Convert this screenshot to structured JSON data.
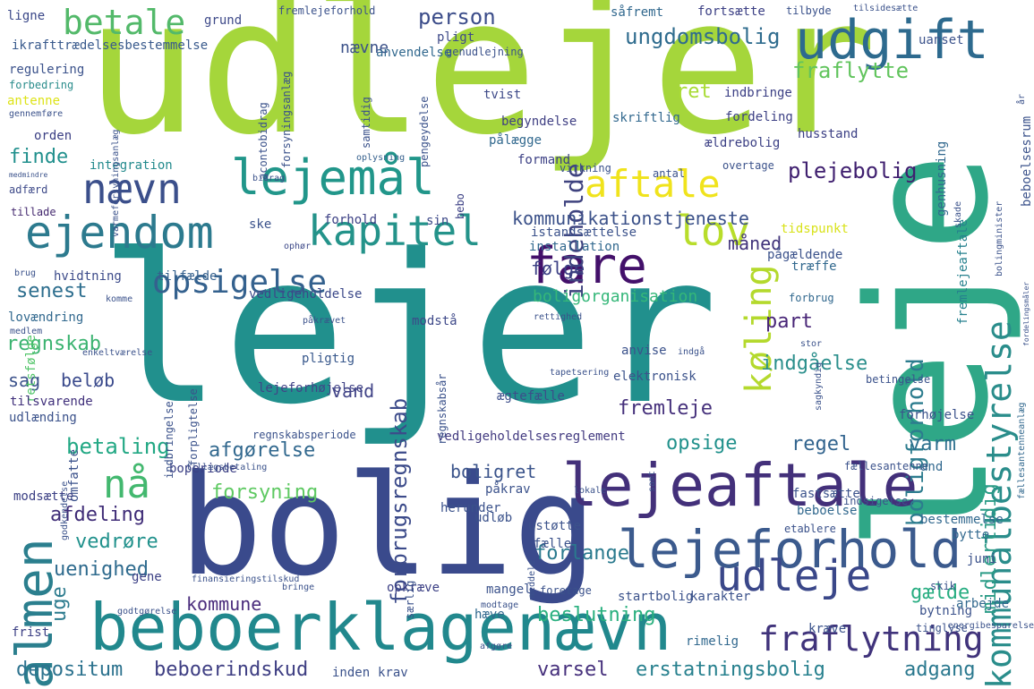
{
  "title": "Word cloud",
  "palette": {
    "lime": "#a7d83a",
    "yellow": "#f2e21f",
    "green": "#5ec962",
    "teal": "#22a884",
    "cyan": "#2a9d8f",
    "blue": "#31688e",
    "indigo": "#3b528b",
    "purple": "#482475",
    "violet": "#440154"
  },
  "words": [
    {
      "text": "udlejer",
      "color": "#a5d63b"
    },
    {
      "text": "lejer",
      "color": "#21908d"
    },
    {
      "text": "leje",
      "color": "#2fa787"
    },
    {
      "text": "bolig",
      "color": "#3a4a8c"
    },
    {
      "text": "beboerklagenævn",
      "color": "#21888d"
    },
    {
      "text": "lejeaftale",
      "color": "#43307a"
    },
    {
      "text": "lejeforhold",
      "color": "#3b5a8d"
    },
    {
      "text": "almen",
      "color": "#2b7f8e"
    },
    {
      "text": "udgift",
      "color": "#2d6a8e"
    },
    {
      "text": "fare",
      "color": "#43106a"
    },
    {
      "text": "lejemål",
      "color": "#21968a"
    },
    {
      "text": "ejendom",
      "color": "#2c7a8e"
    },
    {
      "text": "nævn",
      "color": "#3b4f8b"
    },
    {
      "text": "kapitel",
      "color": "#24938a"
    },
    {
      "text": "lov",
      "color": "#b8dd2b"
    },
    {
      "text": "aftale",
      "color": "#f0e31c"
    },
    {
      "text": "udleje",
      "color": "#3a4789"
    },
    {
      "text": "kommunalbestyrelse",
      "color": "#2a8d8b"
    },
    {
      "text": "køling",
      "color": "#b4d92d"
    },
    {
      "text": "opsigelse",
      "color": "#34618e"
    },
    {
      "text": "betale",
      "color": "#53b96a"
    },
    {
      "text": "fraflytning",
      "color": "#40337b"
    },
    {
      "text": "forbrugsregnskab",
      "color": "#3c4b8a"
    },
    {
      "text": "boligforhold",
      "color": "#2c7c8e"
    },
    {
      "text": "plejebolig",
      "color": "#3f1f6f"
    },
    {
      "text": "fraflytte",
      "color": "#61c45d"
    },
    {
      "text": "ungdomsbolig",
      "color": "#2f6c8e"
    },
    {
      "text": "indeholde",
      "color": "#3f437f"
    },
    {
      "text": "kommunikationstjeneste",
      "color": "#3b5189"
    },
    {
      "text": "person",
      "color": "#3c4d8a"
    },
    {
      "text": "nævne",
      "color": "#3b5189"
    },
    {
      "text": "ret",
      "color": "#a8db34"
    },
    {
      "text": "følge",
      "color": "#3b3f84"
    },
    {
      "text": "måned",
      "color": "#40327a"
    },
    {
      "text": "senest",
      "color": "#2d6e8e"
    },
    {
      "text": "finde",
      "color": "#21908d"
    },
    {
      "text": "regnskab",
      "color": "#3bb370"
    },
    {
      "text": "sag",
      "color": "#3b528b"
    },
    {
      "text": "beløb",
      "color": "#3a4a8c"
    },
    {
      "text": "vand",
      "color": "#414487"
    },
    {
      "text": "betaling",
      "color": "#22a884"
    },
    {
      "text": "afgørelse",
      "color": "#31688e"
    },
    {
      "text": "nå",
      "color": "#43b86f"
    },
    {
      "text": "forsyning",
      "color": "#5ec962"
    },
    {
      "text": "afdeling",
      "color": "#3f2c77"
    },
    {
      "text": "uge",
      "color": "#2c7b8e"
    },
    {
      "text": "vedrøre",
      "color": "#21918c"
    },
    {
      "text": "uenighed",
      "color": "#2f6b8e"
    },
    {
      "text": "kommune",
      "color": "#4a2c7c"
    },
    {
      "text": "depositum",
      "color": "#2c728e"
    },
    {
      "text": "beboerindskud",
      "color": "#3f3f83"
    },
    {
      "text": "varsel",
      "color": "#46307c"
    },
    {
      "text": "erstatningsbolig",
      "color": "#27808e"
    },
    {
      "text": "adgang",
      "color": "#2a788e"
    },
    {
      "text": "fremleje",
      "color": "#45307b"
    },
    {
      "text": "indgåelse",
      "color": "#2b8f8c"
    },
    {
      "text": "opsige",
      "color": "#21918c"
    },
    {
      "text": "regel",
      "color": "#32648e"
    },
    {
      "text": "varm",
      "color": "#2c708e"
    },
    {
      "text": "part",
      "color": "#482577"
    },
    {
      "text": "boligret",
      "color": "#3b548b"
    },
    {
      "text": "forlange",
      "color": "#2a7a8e"
    },
    {
      "text": "beslutning",
      "color": "#2ab07f"
    },
    {
      "text": "gælde",
      "color": "#27ad81"
    },
    {
      "text": "midlertidig",
      "color": "#2a9b86"
    },
    {
      "text": "boligorganisation",
      "color": "#35b779"
    },
    {
      "text": "vedligeholdelse",
      "color": "#3b4889"
    },
    {
      "text": "vedligeholdelsesreglement",
      "color": "#423a80"
    },
    {
      "text": "lejeforhøjelse",
      "color": "#414487"
    },
    {
      "text": "elektronisk",
      "color": "#3b528b"
    },
    {
      "text": "ægtefælle",
      "color": "#3c4e8a"
    },
    {
      "text": "anvise",
      "color": "#3b528b"
    },
    {
      "text": "pligtig",
      "color": "#38588c"
    },
    {
      "text": "modstå",
      "color": "#3e4989"
    },
    {
      "text": "retsfølge",
      "color": "#52c569"
    },
    {
      "text": "lovændring",
      "color": "#31688e"
    },
    {
      "text": "tilsvarende",
      "color": "#40307b"
    },
    {
      "text": "udlænding",
      "color": "#3b528b"
    },
    {
      "text": "integration",
      "color": "#238a8d"
    },
    {
      "text": "adfærd",
      "color": "#3e4a89"
    },
    {
      "text": "medmindre",
      "color": "#3b528b"
    },
    {
      "text": "tillade",
      "color": "#44296f"
    },
    {
      "text": "hvidtning",
      "color": "#3c4b8a"
    },
    {
      "text": "tilfælde",
      "color": "#35608d"
    },
    {
      "text": "orden",
      "color": "#3b3f84"
    },
    {
      "text": "antenne",
      "color": "#dde318"
    },
    {
      "text": "gennemføre",
      "color": "#3b528b"
    },
    {
      "text": "forbedring",
      "color": "#2b8d8c"
    },
    {
      "text": "regulering",
      "color": "#3b528b"
    },
    {
      "text": "ikrafttrædelsesbestemmelse",
      "color": "#38598c"
    },
    {
      "text": "ligne",
      "color": "#3b4889"
    },
    {
      "text": "grund",
      "color": "#3e4a89"
    },
    {
      "text": "fremlejeforhold",
      "color": "#3b528b"
    },
    {
      "text": "pligt",
      "color": "#3e4a89"
    },
    {
      "text": "anvendelse",
      "color": "#31688e"
    },
    {
      "text": "genudlejning",
      "color": "#3b528b"
    },
    {
      "text": "tvist",
      "color": "#3e4a89"
    },
    {
      "text": "pengeydelse",
      "color": "#3b528b"
    },
    {
      "text": "begyndelse",
      "color": "#3f3f83"
    },
    {
      "text": "pålægge",
      "color": "#31688e"
    },
    {
      "text": "formand",
      "color": "#3b3f84"
    },
    {
      "text": "oplysning",
      "color": "#35608d"
    },
    {
      "text": "bebo",
      "color": "#3b3f84"
    },
    {
      "text": "sin",
      "color": "#3e4a89"
    },
    {
      "text": "istandsættelse",
      "color": "#3b528b"
    },
    {
      "text": "installation",
      "color": "#31688e"
    },
    {
      "text": "forhold",
      "color": "#3b3f84"
    },
    {
      "text": "ske",
      "color": "#3b528b"
    },
    {
      "text": "ophør",
      "color": "#3e4a89"
    },
    {
      "text": "skriftlig",
      "color": "#31688e"
    },
    {
      "text": "fordeling",
      "color": "#3b3f84"
    },
    {
      "text": "indbringe",
      "color": "#3b3f84"
    },
    {
      "text": "ældrebolig",
      "color": "#3b3f84"
    },
    {
      "text": "husstand",
      "color": "#3b3f84"
    },
    {
      "text": "overtage",
      "color": "#3b528b"
    },
    {
      "text": "antal",
      "color": "#3b528b"
    },
    {
      "text": "virkning",
      "color": "#3b528b"
    },
    {
      "text": "tidspunkt",
      "color": "#d8e219"
    },
    {
      "text": "pågældende",
      "color": "#3b528b"
    },
    {
      "text": "træffe",
      "color": "#31688e"
    },
    {
      "text": "forbrug",
      "color": "#31688e"
    },
    {
      "text": "fremlejeaftale",
      "color": "#26818e"
    },
    {
      "text": "genhusning",
      "color": "#31688e"
    },
    {
      "text": "beboelsesrum",
      "color": "#3b528b"
    },
    {
      "text": "fortsætte",
      "color": "#3b3f84"
    },
    {
      "text": "såfremt",
      "color": "#31688e"
    },
    {
      "text": "tilbyde",
      "color": "#3b528b"
    },
    {
      "text": "uanset",
      "color": "#3b528b"
    },
    {
      "text": "år",
      "color": "#3b528b"
    },
    {
      "text": "bolingminister",
      "color": "#3b528b"
    },
    {
      "text": "fordelingsmåler",
      "color": "#3b528b"
    },
    {
      "text": "betingelse",
      "color": "#3b528b"
    },
    {
      "text": "fællesantenneanlæg",
      "color": "#31688e"
    },
    {
      "text": "forhøjelse",
      "color": "#3b528b"
    },
    {
      "text": "fællesantenne",
      "color": "#3b528b"
    },
    {
      "text": "and",
      "color": "#31688e"
    },
    {
      "text": "bestemmelse",
      "color": "#31688e"
    },
    {
      "text": "fastsætte",
      "color": "#3b528b"
    },
    {
      "text": "beboelse",
      "color": "#31688e"
    },
    {
      "text": "etablere",
      "color": "#3b528b"
    },
    {
      "text": "bytte",
      "color": "#31688e"
    },
    {
      "text": "juni",
      "color": "#3b528b"
    },
    {
      "text": "arbejde",
      "color": "#31688e"
    },
    {
      "text": "bytning",
      "color": "#3b528b"
    },
    {
      "text": "skik",
      "color": "#3b528b"
    },
    {
      "text": "tinglyse",
      "color": "#3b528b"
    },
    {
      "text": "kræve",
      "color": "#3b528b"
    },
    {
      "text": "rimelig",
      "color": "#31688e"
    },
    {
      "text": "karakter",
      "color": "#3b528b"
    },
    {
      "text": "startbolig",
      "color": "#3b528b"
    },
    {
      "text": "opkræve",
      "color": "#3b3f84"
    },
    {
      "text": "hæve",
      "color": "#31688e"
    },
    {
      "text": "mangel",
      "color": "#3b528b"
    },
    {
      "text": "ustøtte",
      "color": "#3b528b"
    },
    {
      "text": "fælle",
      "color": "#3b528b"
    },
    {
      "text": "påkrav",
      "color": "#3b528b"
    },
    {
      "text": "udløb",
      "color": "#3b528b"
    },
    {
      "text": "herunder",
      "color": "#3b528b"
    },
    {
      "text": "gene",
      "color": "#3b3f84"
    },
    {
      "text": "omfatte",
      "color": "#3b528b"
    },
    {
      "text": "boperiode",
      "color": "#3b3f84"
    },
    {
      "text": "modsætte",
      "color": "#3b3f84"
    },
    {
      "text": "frist",
      "color": "#3b3f84"
    },
    {
      "text": "inden",
      "color": "#3b528b"
    },
    {
      "text": "krav",
      "color": "#3b528b"
    },
    {
      "text": "brug",
      "color": "#3b528b"
    },
    {
      "text": "komme",
      "color": "#3b528b"
    },
    {
      "text": "påkrævet",
      "color": "#3b528b"
    },
    {
      "text": "medlem",
      "color": "#3b528b"
    },
    {
      "text": "lokale",
      "color": "#3b528b"
    },
    {
      "text": "rettighed",
      "color": "#3b528b"
    },
    {
      "text": "stor",
      "color": "#3b528b"
    },
    {
      "text": "samt",
      "color": "#3b528b"
    },
    {
      "text": "indsigelse",
      "color": "#3b528b"
    },
    {
      "text": "indbringelse",
      "color": "#3b528b"
    },
    {
      "text": "forpligtelse",
      "color": "#3b528b"
    },
    {
      "text": "regnskabsperiode",
      "color": "#3b528b"
    },
    {
      "text": "tillægsbetaling",
      "color": "#3b528b"
    },
    {
      "text": "acontobidrag",
      "color": "#3b528b"
    },
    {
      "text": "forsyningsanlæg",
      "color": "#3b528b"
    },
    {
      "text": "varmeforsyningsanlæg",
      "color": "#3b528b"
    },
    {
      "text": "finansieringstilskud",
      "color": "#3b528b"
    },
    {
      "text": "tilsidesætte",
      "color": "#3b528b"
    },
    {
      "text": "energibesparelse",
      "color": "#3b528b"
    },
    {
      "text": "regnskabsår",
      "color": "#3b528b"
    },
    {
      "text": "særlig",
      "color": "#3b528b"
    },
    {
      "text": "bringe",
      "color": "#3b528b"
    },
    {
      "text": "godtgørelse",
      "color": "#3b528b"
    },
    {
      "text": "enkeltværelse",
      "color": "#3b528b"
    },
    {
      "text": "tapetsering",
      "color": "#3b528b"
    },
    {
      "text": "sagkyndig",
      "color": "#3b528b"
    },
    {
      "text": "modtage",
      "color": "#3b528b"
    },
    {
      "text": "afgøre",
      "color": "#3b528b"
    },
    {
      "text": "indgå",
      "color": "#3b528b"
    },
    {
      "text": "foretage",
      "color": "#3b528b"
    },
    {
      "text": "meddele",
      "color": "#3b528b"
    },
    {
      "text": "samtidig",
      "color": "#3b528b"
    },
    {
      "text": "bidrag",
      "color": "#3b528b"
    },
    {
      "text": "skade",
      "color": "#3b528b"
    },
    {
      "text": "godkendelse",
      "color": "#3b528b"
    }
  ]
}
